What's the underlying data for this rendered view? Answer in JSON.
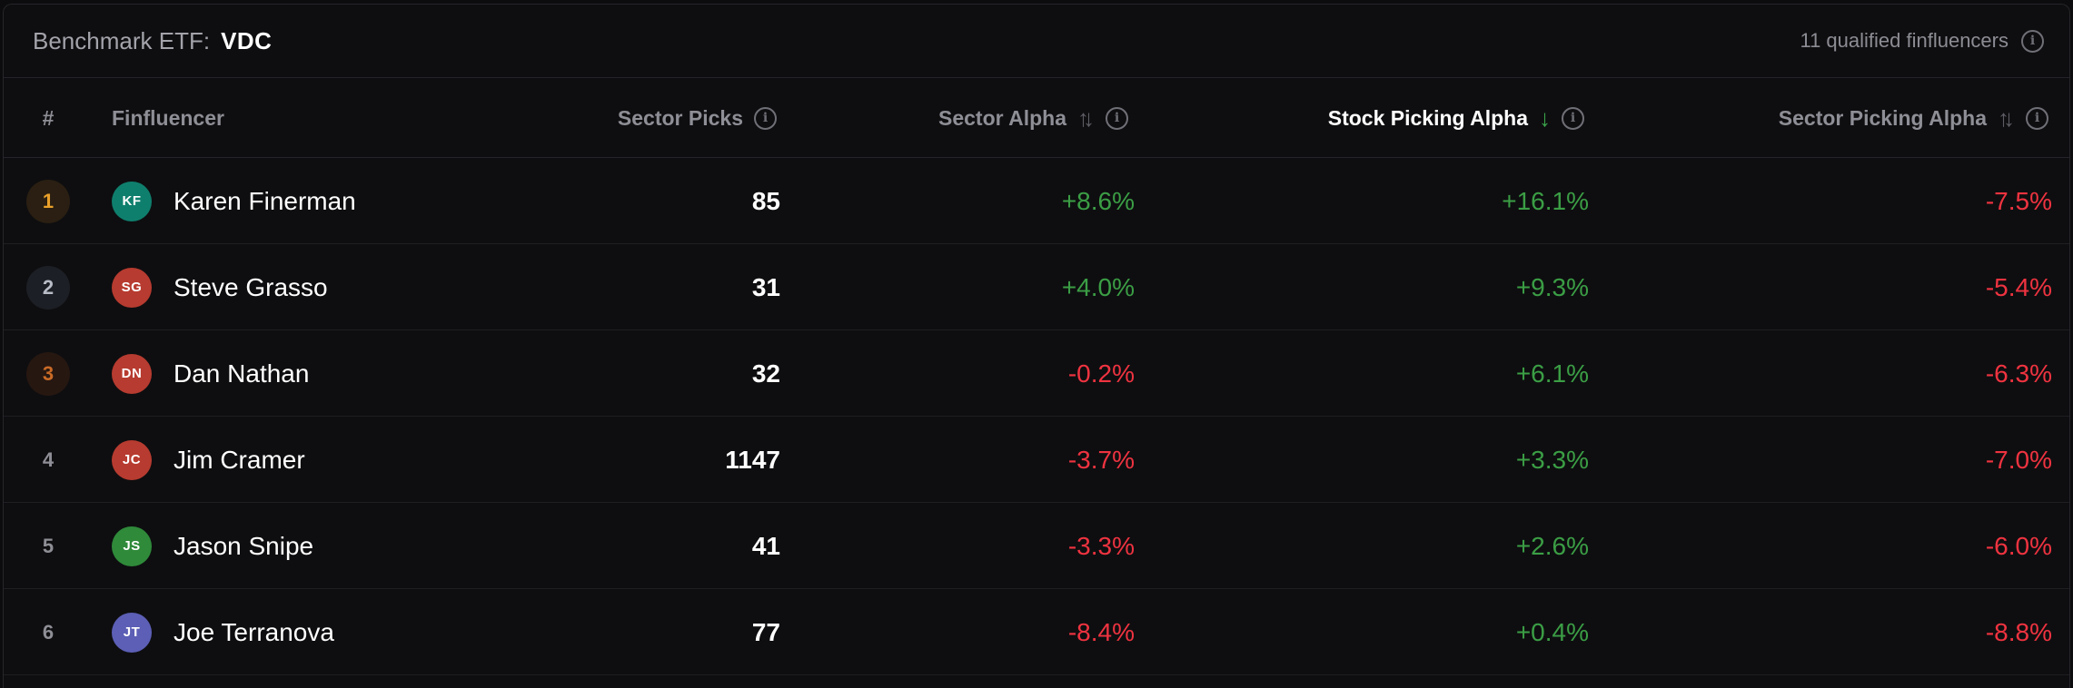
{
  "header": {
    "benchmark_label": "Benchmark ETF:",
    "benchmark_value": "VDC",
    "qualified_text": "11 qualified finfluencers"
  },
  "columns": {
    "rank": "#",
    "finfluencer": "Finfluencer",
    "sector_picks": "Sector Picks",
    "sector_alpha": "Sector Alpha",
    "stock_picking_alpha": "Stock Picking Alpha",
    "sector_picking_alpha": "Sector Picking Alpha"
  },
  "icons": {
    "info": "info-icon",
    "sort": "sort-updown-icon",
    "sort_active": "arrow-down-icon"
  },
  "colors": {
    "positive": "#3b9e45",
    "negative": "#ef3340",
    "gold": "#f0a020",
    "bronze": "#d2691e"
  },
  "rows": [
    {
      "rank": "1",
      "rank_color": "#e9a02a",
      "rank_bg": "#2a1f12",
      "initials": "KF",
      "avatar_color": "#0f7f6d",
      "name": "Karen Finerman",
      "sector_picks": "85",
      "sector_alpha": "+8.6%",
      "sector_alpha_sign": "pos",
      "stock_picking_alpha": "+16.1%",
      "stock_picking_alpha_sign": "pos",
      "sector_picking_alpha": "-7.5%",
      "sector_picking_alpha_sign": "neg"
    },
    {
      "rank": "2",
      "rank_color": "#b8bcc6",
      "rank_bg": "#1c1f25",
      "initials": "SG",
      "avatar_color": "#b73b30",
      "name": "Steve Grasso",
      "sector_picks": "31",
      "sector_alpha": "+4.0%",
      "sector_alpha_sign": "pos",
      "stock_picking_alpha": "+9.3%",
      "stock_picking_alpha_sign": "pos",
      "sector_picking_alpha": "-5.4%",
      "sector_picking_alpha_sign": "neg"
    },
    {
      "rank": "3",
      "rank_color": "#c86a26",
      "rank_bg": "#261711",
      "initials": "DN",
      "avatar_color": "#b73b30",
      "name": "Dan Nathan",
      "sector_picks": "32",
      "sector_alpha": "-0.2%",
      "sector_alpha_sign": "neg",
      "stock_picking_alpha": "+6.1%",
      "stock_picking_alpha_sign": "pos",
      "sector_picking_alpha": "-6.3%",
      "sector_picking_alpha_sign": "neg"
    },
    {
      "rank": "4",
      "rank_color": "#8e8e96",
      "rank_bg": "transparent",
      "initials": "JC",
      "avatar_color": "#b73b30",
      "name": "Jim Cramer",
      "sector_picks": "1147",
      "sector_alpha": "-3.7%",
      "sector_alpha_sign": "neg",
      "stock_picking_alpha": "+3.3%",
      "stock_picking_alpha_sign": "pos",
      "sector_picking_alpha": "-7.0%",
      "sector_picking_alpha_sign": "neg"
    },
    {
      "rank": "5",
      "rank_color": "#8e8e96",
      "rank_bg": "transparent",
      "initials": "JS",
      "avatar_color": "#2f8a3a",
      "name": "Jason Snipe",
      "sector_picks": "41",
      "sector_alpha": "-3.3%",
      "sector_alpha_sign": "neg",
      "stock_picking_alpha": "+2.6%",
      "stock_picking_alpha_sign": "pos",
      "sector_picking_alpha": "-6.0%",
      "sector_picking_alpha_sign": "neg"
    },
    {
      "rank": "6",
      "rank_color": "#8e8e96",
      "rank_bg": "transparent",
      "initials": "JT",
      "avatar_color": "#5c5fb5",
      "name": "Joe Terranova",
      "sector_picks": "77",
      "sector_alpha": "-8.4%",
      "sector_alpha_sign": "neg",
      "stock_picking_alpha": "+0.4%",
      "stock_picking_alpha_sign": "pos",
      "sector_picking_alpha": "-8.8%",
      "sector_picking_alpha_sign": "neg"
    }
  ]
}
